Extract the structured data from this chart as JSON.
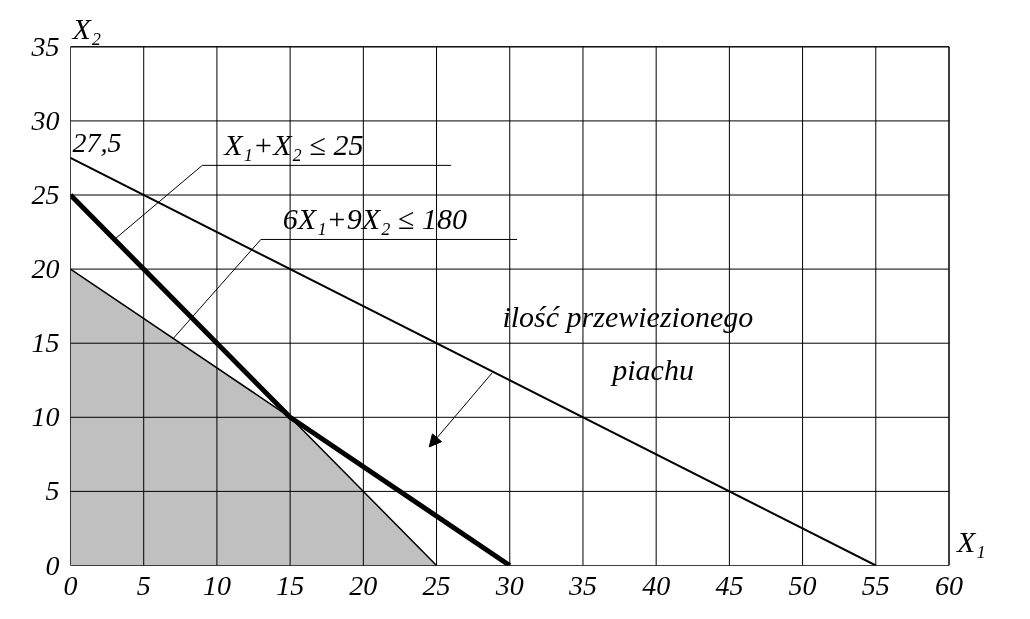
{
  "chart_data": {
    "type": "line",
    "xlabel": "X₁",
    "ylabel": "X₂",
    "xlim": [
      0,
      60
    ],
    "ylim": [
      0,
      35
    ],
    "xticks": [
      0,
      5,
      10,
      15,
      20,
      25,
      30,
      35,
      40,
      45,
      50,
      55,
      60
    ],
    "yticks": [
      0,
      5,
      10,
      15,
      20,
      25,
      30,
      35
    ],
    "grid": true,
    "marker": "none",
    "line_style": "solid",
    "series": [
      {
        "color": "#000000",
        "x": [
          0,
          15,
          30
        ],
        "values": [
          25,
          10,
          0
        ]
      },
      {
        "color": "#000000",
        "x": [
          0,
          55
        ],
        "values": [
          27.5,
          0
        ]
      },
      {
        "type": "area",
        "color": "#c0c0c0",
        "x": [
          0,
          15,
          25
        ],
        "values": [
          20,
          10,
          0
        ]
      }
    ],
    "annotations": [
      {
        "text": "27,5",
        "x": 0,
        "y": 27.5
      },
      {
        "text": "X₁+X₂ ≤ 25",
        "x": 3,
        "y": 22
      },
      {
        "text": "6X₁+9X₂ ≤ 180",
        "x": 7,
        "y": 15.3
      },
      "ilość przewiezionego piachu"
    ]
  }
}
